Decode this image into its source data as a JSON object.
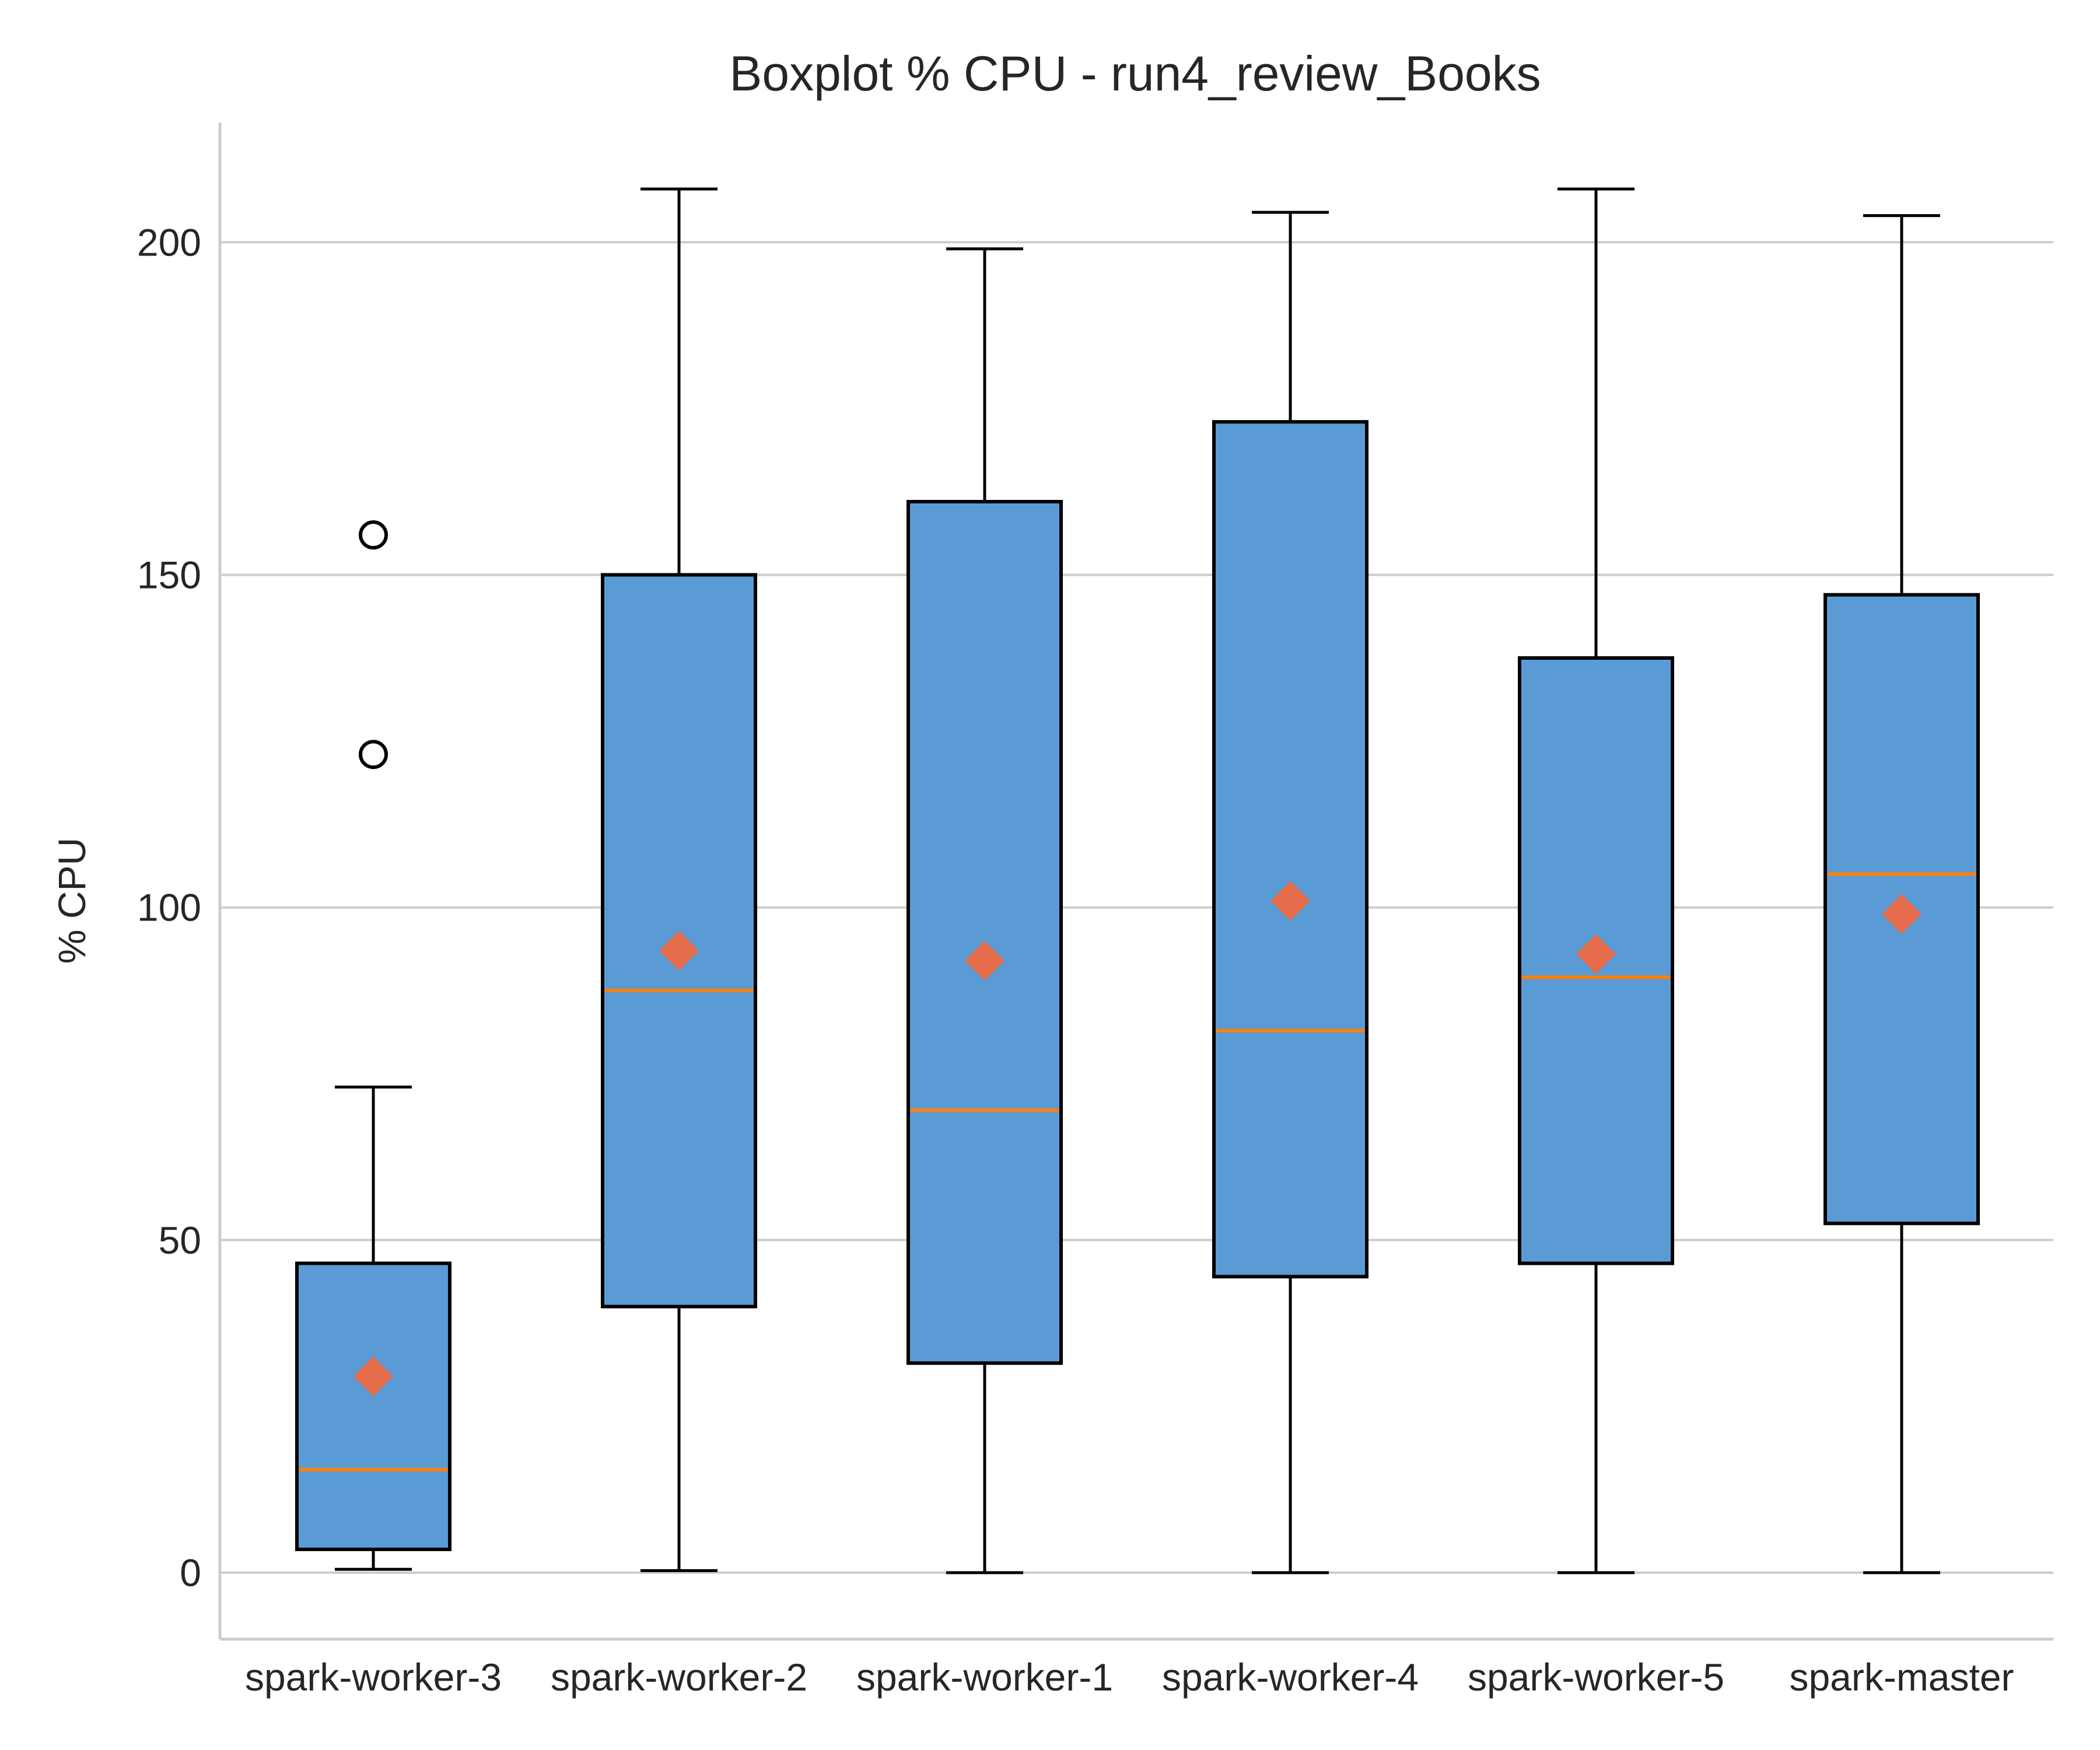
{
  "chart_data": {
    "type": "boxplot",
    "title": "Boxplot % CPU - run4_review_Books",
    "xlabel": "",
    "ylabel": "% CPU",
    "ylim": [
      -10,
      218
    ],
    "yticks": [
      0,
      50,
      100,
      150,
      200
    ],
    "grid": "horizontal",
    "colors": {
      "box_fill": "#5b9bd5",
      "box_edge": "#000000",
      "median": "#ff7f0e",
      "mean_marker": "#e46c4a",
      "grid": "#cccccc",
      "spine": "#cccccc"
    },
    "boxes": [
      {
        "label": "spark-worker-3",
        "whisker_low": 0.5,
        "q1": 3.5,
        "median": 15.5,
        "q3": 46.5,
        "whisker_high": 73,
        "mean": 29.5,
        "outliers": [
          123,
          156
        ]
      },
      {
        "label": "spark-worker-2",
        "whisker_low": 0.3,
        "q1": 40,
        "median": 87.5,
        "q3": 150,
        "whisker_high": 208,
        "mean": 93.5,
        "outliers": []
      },
      {
        "label": "spark-worker-1",
        "whisker_low": 0,
        "q1": 31.5,
        "median": 69.5,
        "q3": 161,
        "whisker_high": 199,
        "mean": 92,
        "outliers": []
      },
      {
        "label": "spark-worker-4",
        "whisker_low": 0,
        "q1": 44.5,
        "median": 81.5,
        "q3": 173,
        "whisker_high": 204.5,
        "mean": 101,
        "outliers": []
      },
      {
        "label": "spark-worker-5",
        "whisker_low": 0,
        "q1": 46.5,
        "median": 89.5,
        "q3": 137.5,
        "whisker_high": 208,
        "mean": 93,
        "outliers": []
      },
      {
        "label": "spark-master",
        "whisker_low": 0,
        "q1": 52.5,
        "median": 105,
        "q3": 147,
        "whisker_high": 204,
        "mean": 99,
        "outliers": []
      }
    ]
  }
}
